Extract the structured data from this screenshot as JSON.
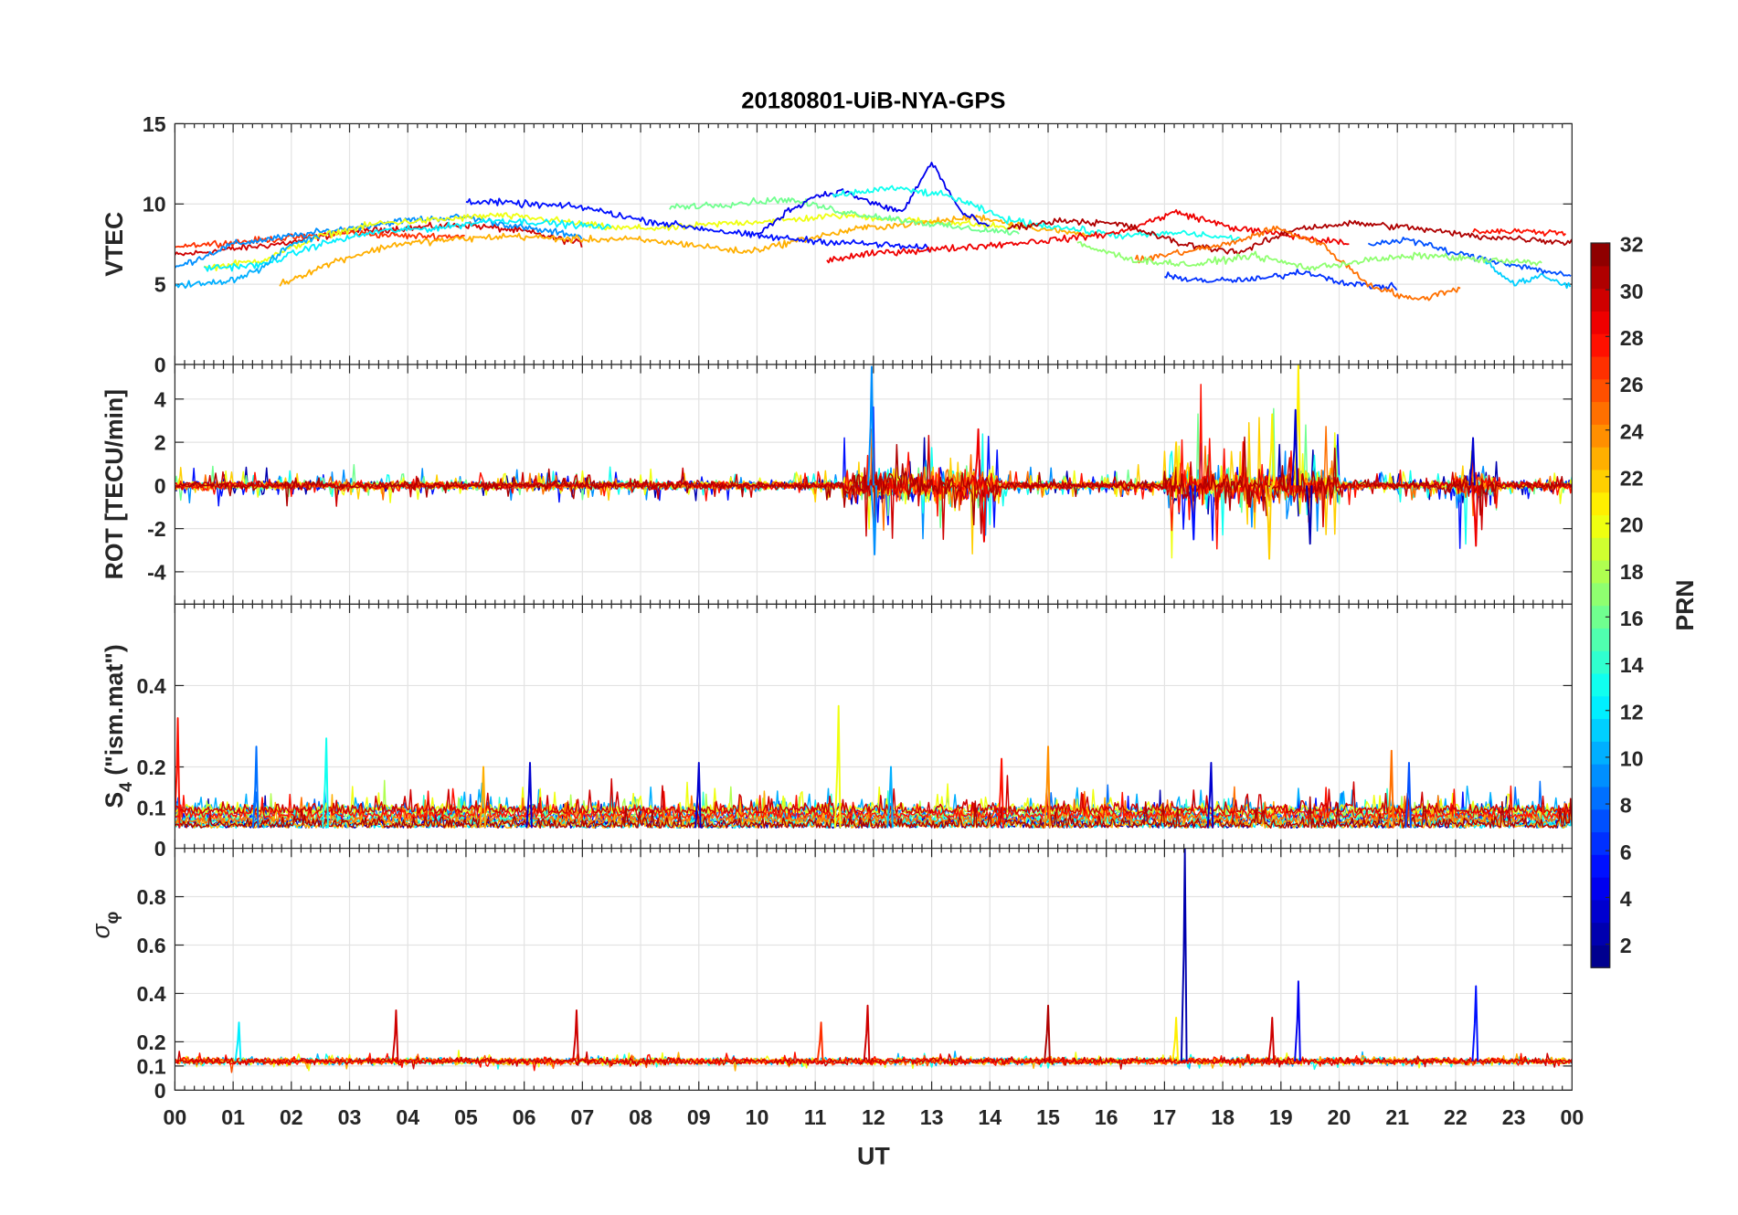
{
  "chart_data": {
    "type": "line",
    "title": "20180801-UiB-NYA-GPS",
    "xlabel": "UT",
    "xlim": [
      0,
      24
    ],
    "x_tick_labels": [
      "00",
      "01",
      "02",
      "03",
      "04",
      "05",
      "06",
      "07",
      "08",
      "09",
      "10",
      "11",
      "12",
      "13",
      "14",
      "15",
      "16",
      "17",
      "18",
      "19",
      "20",
      "21",
      "22",
      "23",
      "00"
    ],
    "grid": true,
    "colorbar": {
      "label": "PRN",
      "range": [
        1,
        32
      ],
      "colormap": "jet",
      "levels": 32,
      "tick_labels": [
        "2",
        "4",
        "6",
        "8",
        "10",
        "12",
        "14",
        "16",
        "18",
        "20",
        "22",
        "24",
        "26",
        "28",
        "30",
        "32"
      ],
      "position": "right"
    },
    "panels": [
      {
        "name": "vtec",
        "ylabel": "VTEC",
        "ylim": [
          0,
          15
        ],
        "yticks": [
          0,
          5,
          10,
          15
        ],
        "ytick_labels": [
          "0",
          "5",
          "10",
          "15"
        ],
        "noise": 0.18,
        "tracks": [
          {
            "prn": 30,
            "start": 0,
            "step": 1,
            "values": [
              6.8,
              7.2,
              7.6,
              8.3,
              8.5,
              8.7,
              8.3,
              7.5
            ]
          },
          {
            "prn": 27,
            "start": 0,
            "step": 1,
            "values": [
              7.4,
              7.6,
              7.9,
              8.2,
              8.0,
              8.0
            ]
          },
          {
            "prn": 9,
            "start": 0,
            "step": 1,
            "values": [
              6.0,
              7.5,
              8.0,
              8.5,
              9.0,
              9.2,
              8.5,
              8.0
            ]
          },
          {
            "prn": 20,
            "start": 0.5,
            "step": 1,
            "values": [
              6.0,
              6.5,
              8.0,
              8.8,
              9.0,
              9.3,
              9.0,
              8.5,
              8.5,
              8.8,
              9.0,
              9.3,
              9.0,
              8.8,
              8.5
            ]
          },
          {
            "prn": 12,
            "start": 0.5,
            "step": 1,
            "values": [
              6.0,
              6.2,
              7.5,
              8.3,
              8.5,
              9.0,
              8.8,
              8.5
            ]
          },
          {
            "prn": 10,
            "start": 0,
            "step": 0.5,
            "values": [
              5.0,
              5.0,
              5.3,
              6.0,
              7.5,
              8.0
            ]
          },
          {
            "prn": 23,
            "start": 1.8,
            "step": 1,
            "values": [
              5.0,
              6.5,
              7.5,
              7.8,
              8.0,
              7.8,
              7.8,
              7.5,
              7.0,
              7.8,
              8.5,
              8.8,
              9.2,
              8.5,
              8.0
            ]
          },
          {
            "prn": 5,
            "start": 5,
            "step": 1,
            "values": [
              10.2,
              10.0,
              9.8,
              9.0,
              8.5,
              8.0,
              7.7,
              7.5,
              7.2
            ]
          },
          {
            "prn": 16,
            "start": 8.5,
            "step": 1,
            "values": [
              9.8,
              10.0,
              10.3,
              9.5,
              9.0,
              8.5,
              8.2
            ]
          },
          {
            "prn": 4,
            "start": 10,
            "step": 0.5,
            "values": [
              8.0,
              9.5,
              10.5,
              10.8,
              10.0,
              9.5,
              12.6,
              9.5,
              8.5
            ]
          },
          {
            "prn": 13,
            "start": 11.3,
            "step": 1,
            "values": [
              10.5,
              11.0,
              10.5,
              9.0,
              8.5,
              8.0,
              8.2,
              7.8
            ]
          },
          {
            "prn": 29,
            "start": 11.2,
            "step": 1,
            "values": [
              6.5,
              7.0,
              7.2,
              7.5,
              7.8,
              8.2,
              9.5,
              8.5,
              8.0,
              7.5
            ]
          },
          {
            "prn": 31,
            "start": 14.3,
            "step": 1,
            "values": [
              8.5,
              9.0,
              8.7,
              7.5,
              7.0,
              8.5,
              8.8,
              8.5,
              8.0,
              7.8,
              7.5,
              7.0,
              6.8,
              6.2
            ]
          },
          {
            "prn": 6,
            "start": 17,
            "step": 0.8,
            "values": [
              5.5,
              5.2,
              5.3,
              5.8,
              5.0,
              4.8
            ]
          },
          {
            "prn": 25,
            "start": 16.5,
            "step": 0.8,
            "values": [
              6.5,
              7.0,
              7.5,
              8.5,
              7.5,
              5.0,
              4.0,
              4.8
            ]
          },
          {
            "prn": 28,
            "start": 22.3,
            "step": 0.8,
            "values": [
              8.3,
              8.3,
              8.2
            ]
          },
          {
            "prn": 11,
            "start": 22.5,
            "step": 0.5,
            "values": [
              6.5,
              5.0,
              5.5,
              4.8
            ]
          },
          {
            "prn": 7,
            "start": 20.5,
            "step": 0.7,
            "values": [
              7.5,
              7.8,
              7.0,
              6.5,
              6.0,
              5.5
            ]
          },
          {
            "prn": 17,
            "start": 15.5,
            "step": 1,
            "values": [
              7.5,
              6.5,
              6.2,
              6.8,
              6.0,
              6.5,
              6.8,
              6.5,
              6.3
            ]
          }
        ]
      },
      {
        "name": "rot",
        "ylabel": "ROT [TECU/min]",
        "ylim": [
          -5.5,
          5.6
        ],
        "yticks": [
          -4,
          -2,
          0,
          2,
          4
        ],
        "ytick_labels": [
          "-4",
          "-2",
          "0",
          "2",
          "4"
        ],
        "baseline": 0,
        "noise": 0.25,
        "active_hours": [
          [
            11.5,
            14.2,
            0.9
          ],
          [
            17,
            20,
            0.9
          ],
          [
            22,
            22.7,
            0.8
          ]
        ],
        "prns": [
          2,
          5,
          9,
          13,
          16,
          20,
          22,
          25,
          28,
          30,
          31
        ],
        "spikes": [
          [
            11.97,
            5.5,
            9
          ],
          [
            12.02,
            -3.2,
            9
          ],
          [
            13.8,
            2.6,
            29
          ],
          [
            13.9,
            -2.6,
            29
          ],
          [
            17.2,
            2.0,
            22
          ],
          [
            18.8,
            -3.4,
            22
          ],
          [
            19.3,
            5.6,
            21
          ],
          [
            19.25,
            3.5,
            3
          ],
          [
            19.5,
            -2.7,
            2
          ],
          [
            22.3,
            2.2,
            3
          ],
          [
            22.35,
            -2.8,
            29
          ],
          [
            18.85,
            3.3,
            21
          ],
          [
            17.5,
            -2.5,
            5
          ]
        ]
      },
      {
        "name": "s4",
        "ylabel": "S4 (\"ism.mat\")",
        "ylabel_main": "S",
        "ylabel_sub": "4",
        "ylabel_rest": " (\"ism.mat\")",
        "ylim": [
          0,
          0.6
        ],
        "yticks": [
          0,
          0.1,
          0.2,
          0.4
        ],
        "ytick_labels": [
          "0",
          "0.1",
          "0.2",
          "0.4"
        ],
        "baseline": 0.05,
        "noise": 0.02,
        "prns": [
          2,
          5,
          8,
          10,
          12,
          14,
          18,
          20,
          23,
          25,
          28,
          30,
          31
        ],
        "spikes": [
          [
            0.05,
            0.32,
            28
          ],
          [
            11.4,
            0.35,
            20
          ],
          [
            1.4,
            0.25,
            8
          ],
          [
            2.6,
            0.27,
            13
          ],
          [
            15.0,
            0.25,
            24
          ],
          [
            14.2,
            0.22,
            28
          ],
          [
            20.9,
            0.24,
            25
          ],
          [
            17.8,
            0.21,
            3
          ],
          [
            6.1,
            0.21,
            3
          ],
          [
            9.0,
            0.21,
            3
          ],
          [
            21.2,
            0.21,
            7
          ],
          [
            5.3,
            0.2,
            23
          ],
          [
            12.3,
            0.2,
            10
          ]
        ]
      },
      {
        "name": "sigma_phi",
        "ylabel": "σφ",
        "ylabel_main": "σ",
        "ylabel_sub": "φ",
        "ylim": [
          0,
          1
        ],
        "yticks": [
          0,
          0.1,
          0.2,
          0.4,
          0.6,
          0.8
        ],
        "ytick_labels": [
          "0",
          "0.1",
          "0.2",
          "0.4",
          "0.6",
          "0.8"
        ],
        "baseline": 0.12,
        "noise": 0.012,
        "prns": [
          10,
          13,
          20,
          23,
          26,
          28,
          30
        ],
        "spikes": [
          [
            17.35,
            1.0,
            2
          ],
          [
            19.3,
            0.45,
            4
          ],
          [
            22.35,
            0.43,
            5
          ],
          [
            3.8,
            0.33,
            30
          ],
          [
            6.9,
            0.33,
            30
          ],
          [
            11.9,
            0.35,
            30
          ],
          [
            15.0,
            0.35,
            31
          ],
          [
            1.1,
            0.28,
            12
          ],
          [
            18.85,
            0.3,
            30
          ],
          [
            11.1,
            0.28,
            27
          ],
          [
            17.2,
            0.3,
            21
          ]
        ]
      }
    ]
  }
}
